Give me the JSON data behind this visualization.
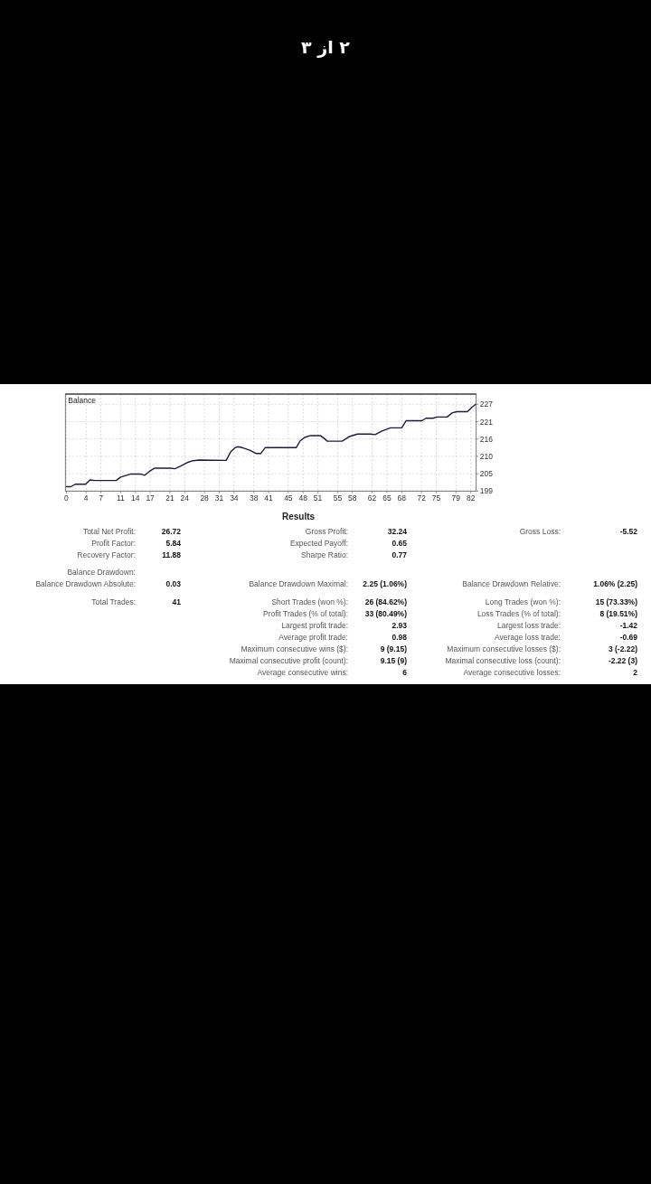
{
  "chart_data": [
    {
      "type": "line",
      "title": "Balance",
      "annotations": [
        "۲ از ۳"
      ],
      "x": [
        0,
        0.9,
        1.8,
        3.9,
        4.8,
        5.8,
        10.1,
        11.0,
        12.2,
        13.1,
        15.0,
        15.9,
        16.8,
        17.9,
        21.1,
        22.0,
        23.2,
        24.5,
        25.7,
        26.9,
        32.4,
        33.3,
        34.2,
        34.8,
        35.7,
        37.3,
        38.5,
        39.4,
        40.3,
        46.6,
        47.4,
        48.3,
        49.5,
        51.5,
        52.1,
        52.9,
        55.9,
        56.5,
        57.4,
        59.0,
        61.7,
        62.6,
        63.9,
        65.7,
        68.0,
        68.9,
        72.1,
        72.9,
        74.3,
        75.2,
        77.2,
        78.2,
        79.1,
        81.3,
        82.2,
        83.0
      ],
      "values": [
        200.4,
        200.4,
        201.2,
        201.2,
        202.6,
        202.4,
        202.4,
        203.5,
        204.1,
        204.5,
        204.5,
        204.1,
        205.3,
        206.4,
        206.4,
        206.2,
        207.1,
        208.2,
        208.8,
        209.0,
        208.9,
        211.6,
        213.0,
        213.3,
        213.0,
        212.1,
        211.1,
        211.1,
        213.0,
        213.0,
        215.2,
        216.3,
        216.9,
        216.9,
        216.2,
        215.1,
        215.1,
        215.7,
        216.6,
        217.4,
        217.4,
        217.2,
        218.3,
        219.4,
        219.4,
        221.7,
        221.7,
        222.5,
        222.5,
        222.9,
        222.9,
        224.2,
        224.6,
        224.6,
        226.0,
        227.0
      ],
      "color": "#1c1c3c",
      "xlim": [
        -0.2,
        83.1
      ],
      "xticks": [
        0,
        4,
        7,
        11,
        14,
        17,
        21,
        24,
        28,
        31,
        34,
        38,
        41,
        45,
        48,
        51,
        55,
        58,
        62,
        65,
        68,
        72,
        75,
        79,
        82
      ],
      "ylim": [
        199,
        230.3
      ],
      "yticks": [
        199,
        {
          "value": 204.6,
          "label": "205"
        },
        {
          "value": 210.2,
          "label": "210"
        },
        {
          "value": 215.8,
          "label": "216"
        },
        {
          "value": 221.4,
          "label": "221"
        },
        227
      ],
      "grid": true
    },
    {
      "type": "other",
      "title": "Results",
      "annotations": [
        "Total Net Profit:",
        "26.72",
        "Gross Profit:",
        "32.24",
        "Gross Loss:",
        "-5.52",
        "Profit Factor:",
        "5.84",
        "Expected Payoff:",
        "0.65",
        "Recovery Factor:",
        "11.88",
        "Sharpe Ratio:",
        "0.77",
        "Balance Drawdown:",
        "Balance Drawdown Absolute:",
        "0.03",
        "Balance Drawdown Maximal:",
        "2.25 (1.06%)",
        "Balance Drawdown Relative:",
        "1.06% (2.25)",
        "Total Trades:",
        "41",
        "Short Trades (won %):",
        "26 (84.62%)",
        "Long Trades (won %):",
        "15 (73.33%)",
        "Profit Trades (% of total):",
        "33 (80.49%)",
        "Loss Trades (% of total):",
        "8 (19.51%)",
        "Largest profit trade:",
        "2.93",
        "Largest loss trade:",
        "-1.42",
        "Average profit trade:",
        "0.98",
        "Average loss trade:",
        "-0.69",
        "Maximum consecutive wins ($):",
        "9 (9.15)",
        "Maximum consecutive losses ($):",
        "3 (-2.22)",
        "Maximal consecutive profit (count):",
        "9.15 (9)",
        "Maximal consecutive loss (count):",
        "-2.22 (3)",
        "Average consecutive wins:",
        "6",
        "Average consecutive losses:",
        "2"
      ]
    }
  ]
}
